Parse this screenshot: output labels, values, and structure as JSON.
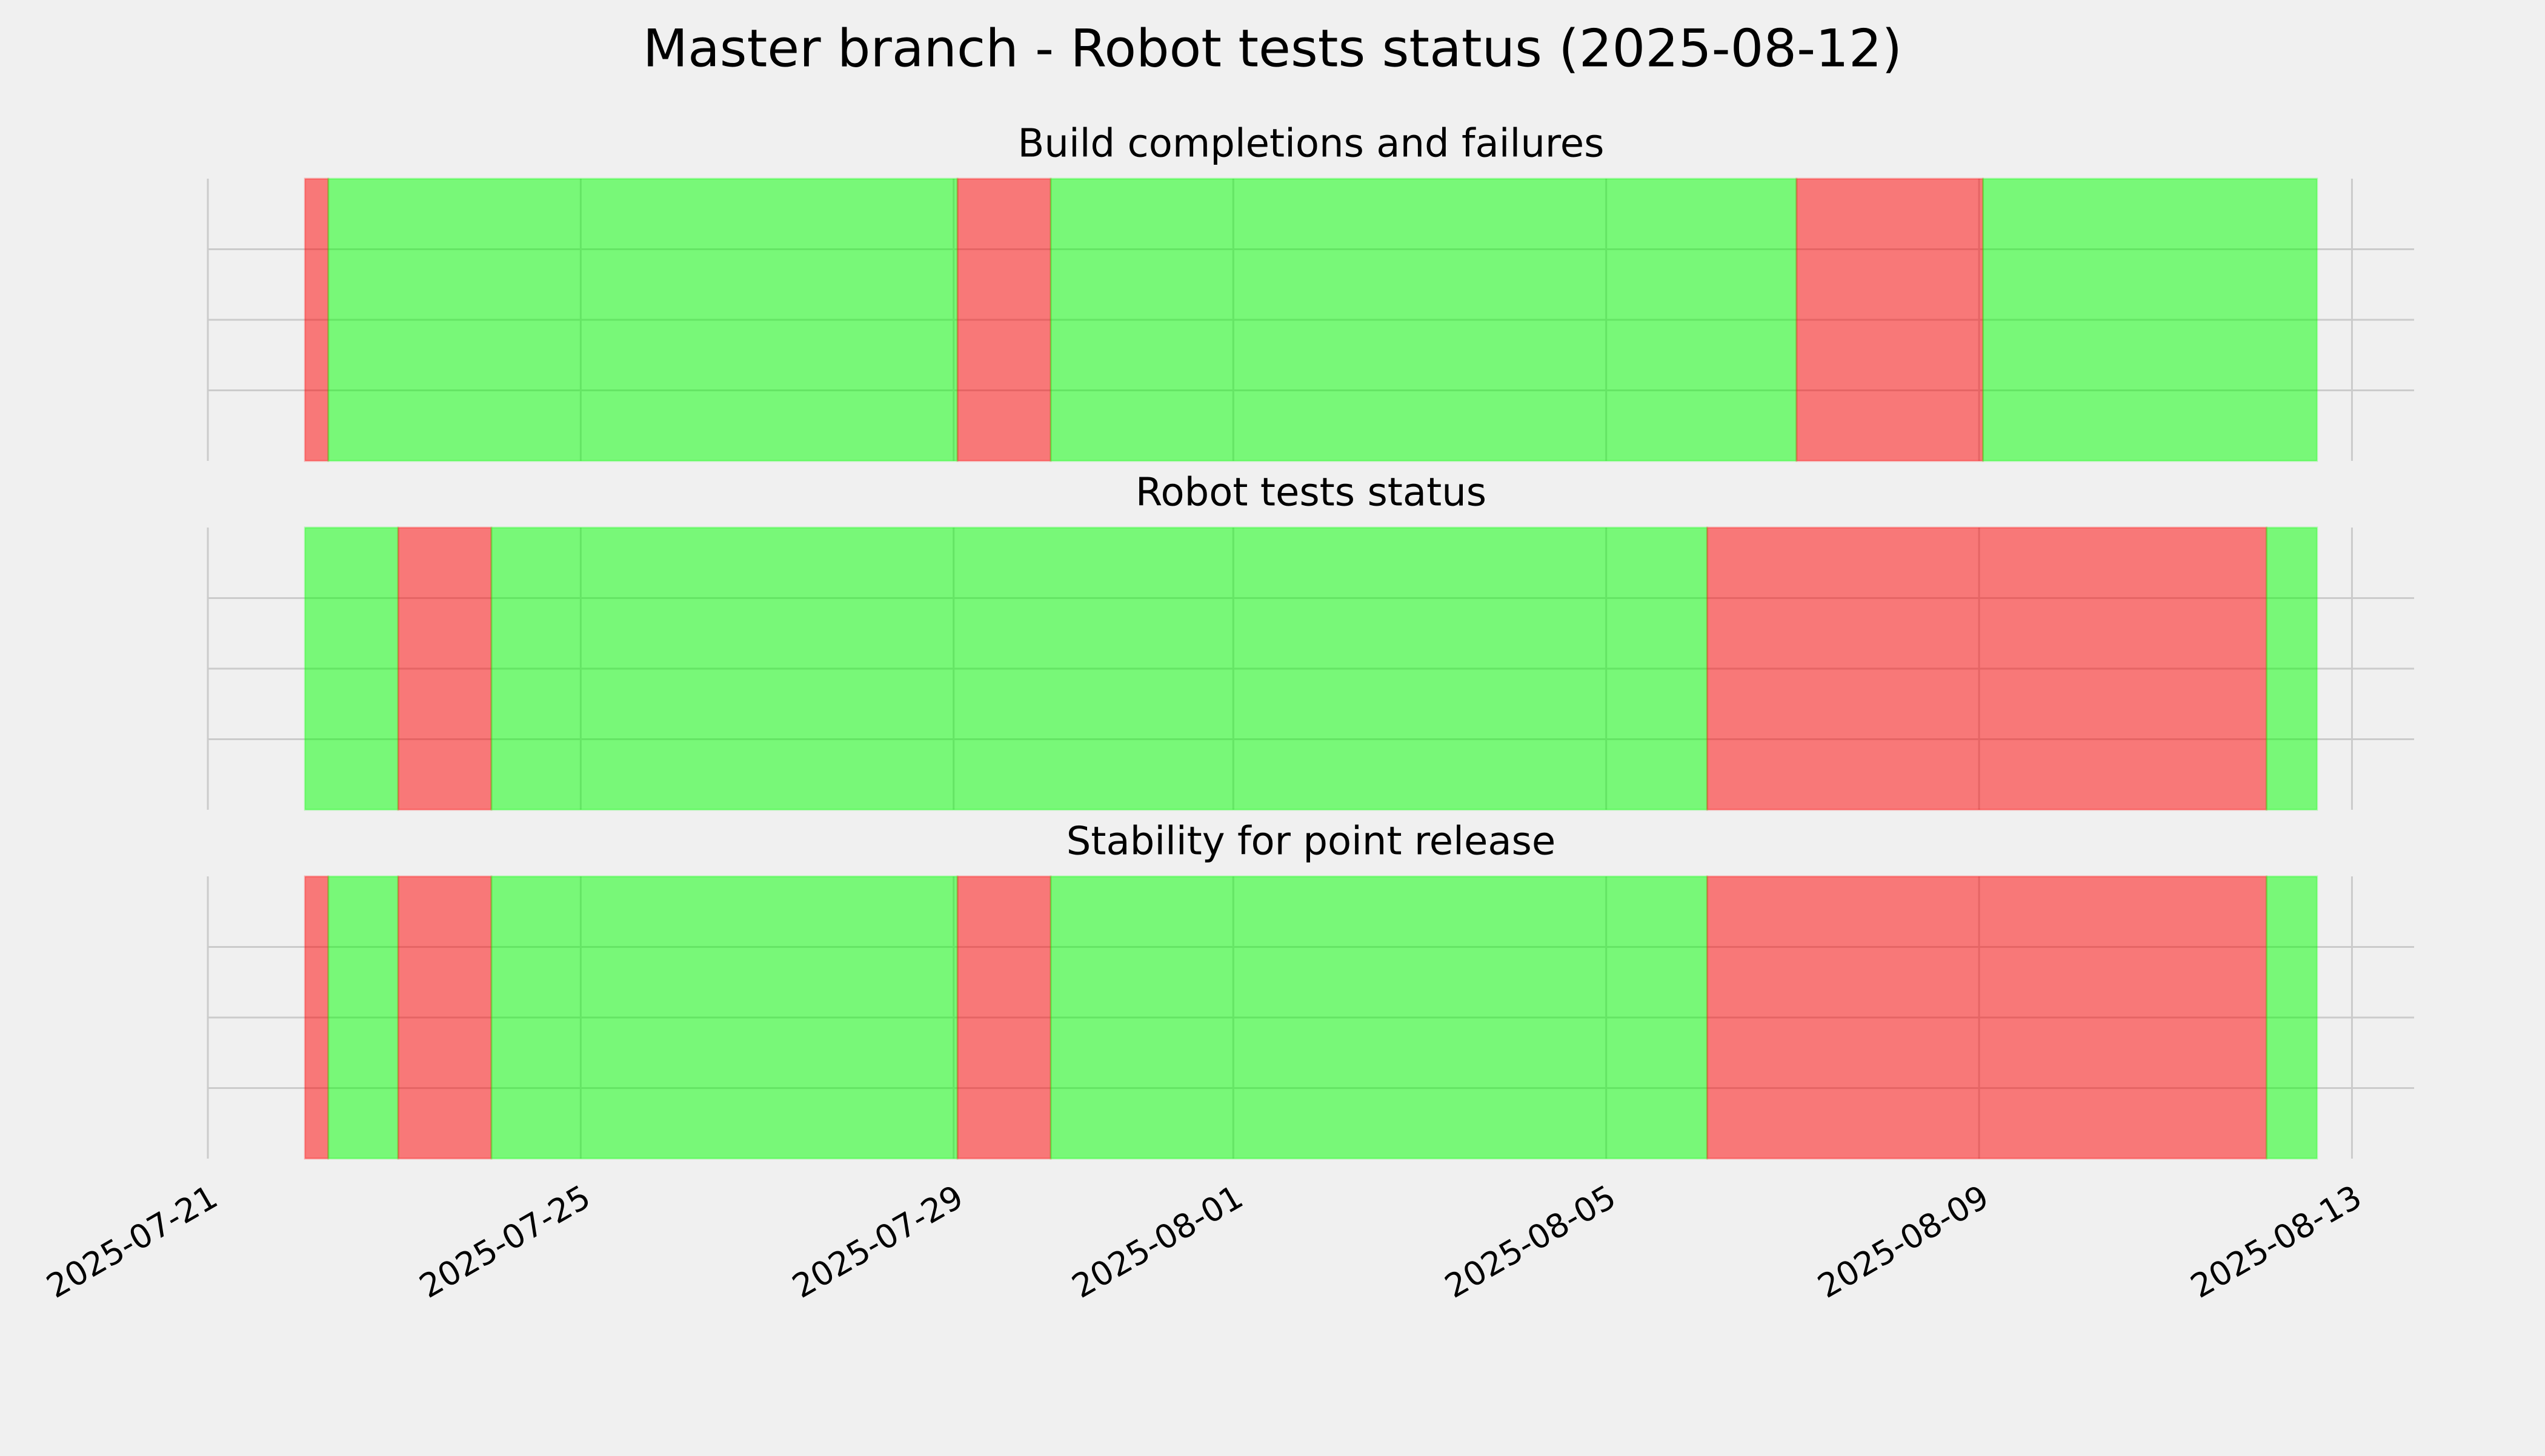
{
  "chart_data": [
    {
      "type": "timeline",
      "title": "Master branch - Robot tests status (2025-08-12)",
      "subtitle": "Build completions and failures",
      "xlim": [
        "2025-07-21T00:00",
        "2025-08-13T16:00"
      ],
      "xticks": [
        "2025-07-21",
        "2025-07-25",
        "2025-07-29",
        "2025-08-01",
        "2025-08-05",
        "2025-08-09",
        "2025-08-13"
      ],
      "ylim": [
        0,
        1
      ],
      "ygrid": [
        0.25,
        0.5,
        0.75
      ],
      "grid": true,
      "alpha": 0.5,
      "bands": [
        {
          "start": "2025-07-22T01:00",
          "end": "2025-07-22T07:00",
          "color": "#ff0000"
        },
        {
          "start": "2025-07-22T07:00",
          "end": "2025-07-29T01:00",
          "color": "#00ff00"
        },
        {
          "start": "2025-07-29T01:00",
          "end": "2025-07-30T01:00",
          "color": "#ff0000"
        },
        {
          "start": "2025-07-30T01:00",
          "end": "2025-08-07T01:00",
          "color": "#00ff00"
        },
        {
          "start": "2025-08-07T01:00",
          "end": "2025-08-09T01:00",
          "color": "#ff0000"
        },
        {
          "start": "2025-08-09T01:00",
          "end": "2025-08-12T15:00",
          "color": "#00ff00"
        }
      ]
    },
    {
      "type": "timeline",
      "subtitle": "Robot tests status",
      "xlim": [
        "2025-07-21T00:00",
        "2025-08-13T16:00"
      ],
      "xticks": [
        "2025-07-21",
        "2025-07-25",
        "2025-07-29",
        "2025-08-01",
        "2025-08-05",
        "2025-08-09",
        "2025-08-13"
      ],
      "ylim": [
        0,
        1
      ],
      "ygrid": [
        0.25,
        0.5,
        0.75
      ],
      "grid": true,
      "alpha": 0.5,
      "bands": [
        {
          "start": "2025-07-22T01:00",
          "end": "2025-07-23T01:00",
          "color": "#00ff00"
        },
        {
          "start": "2025-07-23T01:00",
          "end": "2025-07-24T01:00",
          "color": "#ff0000"
        },
        {
          "start": "2025-07-24T01:00",
          "end": "2025-08-06T02:00",
          "color": "#00ff00"
        },
        {
          "start": "2025-08-06T02:00",
          "end": "2025-08-12T02:00",
          "color": "#ff0000"
        },
        {
          "start": "2025-08-12T02:00",
          "end": "2025-08-12T15:00",
          "color": "#00ff00"
        }
      ]
    },
    {
      "type": "timeline",
      "subtitle": "Stability for point release",
      "xlim": [
        "2025-07-21T00:00",
        "2025-08-13T16:00"
      ],
      "xticks": [
        "2025-07-21",
        "2025-07-25",
        "2025-07-29",
        "2025-08-01",
        "2025-08-05",
        "2025-08-09",
        "2025-08-13"
      ],
      "ylim": [
        0,
        1
      ],
      "ygrid": [
        0.25,
        0.5,
        0.75
      ],
      "grid": true,
      "alpha": 0.5,
      "show_xtick_labels": true,
      "bands": [
        {
          "start": "2025-07-22T01:00",
          "end": "2025-07-22T07:00",
          "color": "#ff0000"
        },
        {
          "start": "2025-07-22T07:00",
          "end": "2025-07-23T01:00",
          "color": "#00ff00"
        },
        {
          "start": "2025-07-23T01:00",
          "end": "2025-07-24T01:00",
          "color": "#ff0000"
        },
        {
          "start": "2025-07-24T01:00",
          "end": "2025-07-29T01:00",
          "color": "#00ff00"
        },
        {
          "start": "2025-07-29T01:00",
          "end": "2025-07-30T01:00",
          "color": "#ff0000"
        },
        {
          "start": "2025-07-30T01:00",
          "end": "2025-08-06T02:00",
          "color": "#00ff00"
        },
        {
          "start": "2025-08-06T02:00",
          "end": "2025-08-12T02:00",
          "color": "#ff0000"
        },
        {
          "start": "2025-08-12T02:00",
          "end": "2025-08-12T15:00",
          "color": "#00ff00"
        }
      ]
    }
  ]
}
